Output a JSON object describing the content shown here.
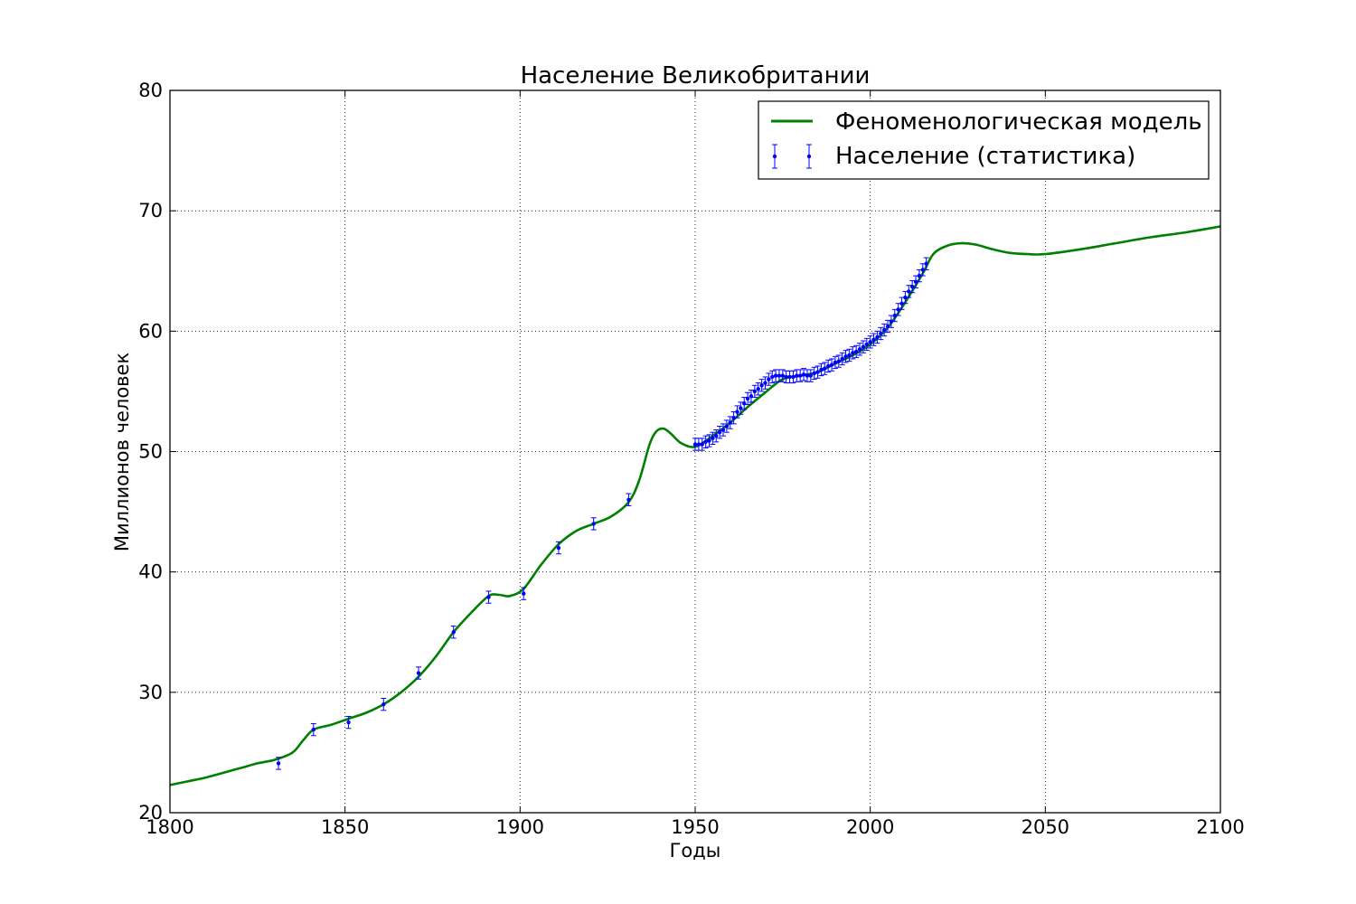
{
  "chart_data": {
    "type": "line",
    "title": "Население Великобритании",
    "xlabel": "Годы",
    "ylabel": "Миллионов человек",
    "xlim": [
      1800,
      2100
    ],
    "ylim": [
      20,
      80
    ],
    "x_ticks": [
      1800,
      1850,
      1900,
      1950,
      2000,
      2050,
      2100
    ],
    "y_ticks": [
      20,
      30,
      40,
      50,
      60,
      70,
      80
    ],
    "grid": true,
    "legend_position": "top-right",
    "series": [
      {
        "name": "Феноменологическая модель",
        "kind": "line",
        "color": "#008000",
        "points": [
          [
            1800,
            22.3
          ],
          [
            1805,
            22.6
          ],
          [
            1810,
            22.9
          ],
          [
            1815,
            23.3
          ],
          [
            1820,
            23.7
          ],
          [
            1825,
            24.1
          ],
          [
            1830,
            24.4
          ],
          [
            1835,
            25.0
          ],
          [
            1838,
            26.0
          ],
          [
            1841,
            26.9
          ],
          [
            1846,
            27.3
          ],
          [
            1851,
            27.8
          ],
          [
            1856,
            28.3
          ],
          [
            1861,
            29.0
          ],
          [
            1866,
            30.0
          ],
          [
            1871,
            31.3
          ],
          [
            1876,
            33.0
          ],
          [
            1881,
            35.0
          ],
          [
            1886,
            36.6
          ],
          [
            1891,
            38.0
          ],
          [
            1894,
            38.1
          ],
          [
            1897,
            38.0
          ],
          [
            1901,
            38.6
          ],
          [
            1906,
            40.6
          ],
          [
            1911,
            42.3
          ],
          [
            1916,
            43.4
          ],
          [
            1921,
            44.0
          ],
          [
            1926,
            44.6
          ],
          [
            1931,
            45.8
          ],
          [
            1934,
            47.6
          ],
          [
            1937,
            50.6
          ],
          [
            1939,
            51.7
          ],
          [
            1941,
            51.9
          ],
          [
            1943,
            51.5
          ],
          [
            1946,
            50.7
          ],
          [
            1950,
            50.4
          ],
          [
            1955,
            51.3
          ],
          [
            1960,
            52.4
          ],
          [
            1965,
            53.7
          ],
          [
            1970,
            54.9
          ],
          [
            1975,
            56.0
          ],
          [
            1980,
            56.3
          ],
          [
            1985,
            56.6
          ],
          [
            1990,
            57.3
          ],
          [
            1995,
            58.0
          ],
          [
            2000,
            58.9
          ],
          [
            2005,
            60.3
          ],
          [
            2010,
            62.4
          ],
          [
            2015,
            64.8
          ],
          [
            2018,
            66.4
          ],
          [
            2022,
            67.1
          ],
          [
            2026,
            67.3
          ],
          [
            2030,
            67.2
          ],
          [
            2035,
            66.8
          ],
          [
            2040,
            66.5
          ],
          [
            2045,
            66.4
          ],
          [
            2050,
            66.4
          ],
          [
            2060,
            66.8
          ],
          [
            2070,
            67.3
          ],
          [
            2080,
            67.8
          ],
          [
            2090,
            68.2
          ],
          [
            2100,
            68.7
          ]
        ]
      },
      {
        "name": "Население (статистика)",
        "kind": "errorbar",
        "color": "#0000ff",
        "error": 0.5,
        "points": [
          [
            1831,
            24.1
          ],
          [
            1841,
            26.9
          ],
          [
            1851,
            27.5
          ],
          [
            1861,
            29.0
          ],
          [
            1871,
            31.6
          ],
          [
            1881,
            35.0
          ],
          [
            1891,
            37.9
          ],
          [
            1901,
            38.2
          ],
          [
            1911,
            42.0
          ],
          [
            1921,
            44.0
          ],
          [
            1931,
            46.0
          ],
          [
            1950,
            50.6
          ],
          [
            1951,
            50.6
          ],
          [
            1952,
            50.6
          ],
          [
            1953,
            50.8
          ],
          [
            1954,
            50.9
          ],
          [
            1955,
            51.1
          ],
          [
            1956,
            51.3
          ],
          [
            1957,
            51.6
          ],
          [
            1958,
            51.8
          ],
          [
            1959,
            52.1
          ],
          [
            1960,
            52.4
          ],
          [
            1961,
            52.8
          ],
          [
            1962,
            53.3
          ],
          [
            1963,
            53.6
          ],
          [
            1964,
            54.0
          ],
          [
            1965,
            54.4
          ],
          [
            1966,
            54.6
          ],
          [
            1967,
            55.0
          ],
          [
            1968,
            55.2
          ],
          [
            1969,
            55.5
          ],
          [
            1970,
            55.7
          ],
          [
            1971,
            56.0
          ],
          [
            1972,
            56.2
          ],
          [
            1973,
            56.3
          ],
          [
            1974,
            56.3
          ],
          [
            1975,
            56.3
          ],
          [
            1976,
            56.2
          ],
          [
            1977,
            56.2
          ],
          [
            1978,
            56.2
          ],
          [
            1979,
            56.3
          ],
          [
            1980,
            56.3
          ],
          [
            1981,
            56.4
          ],
          [
            1982,
            56.3
          ],
          [
            1983,
            56.3
          ],
          [
            1984,
            56.5
          ],
          [
            1985,
            56.6
          ],
          [
            1986,
            56.8
          ],
          [
            1987,
            56.9
          ],
          [
            1988,
            57.1
          ],
          [
            1989,
            57.2
          ],
          [
            1990,
            57.4
          ],
          [
            1991,
            57.5
          ],
          [
            1992,
            57.7
          ],
          [
            1993,
            57.9
          ],
          [
            1994,
            58.0
          ],
          [
            1995,
            58.2
          ],
          [
            1996,
            58.3
          ],
          [
            1997,
            58.5
          ],
          [
            1998,
            58.7
          ],
          [
            1999,
            58.9
          ],
          [
            2000,
            59.1
          ],
          [
            2001,
            59.3
          ],
          [
            2002,
            59.5
          ],
          [
            2003,
            59.8
          ],
          [
            2004,
            60.1
          ],
          [
            2005,
            60.4
          ],
          [
            2006,
            60.8
          ],
          [
            2007,
            61.3
          ],
          [
            2008,
            61.8
          ],
          [
            2009,
            62.3
          ],
          [
            2010,
            62.8
          ],
          [
            2011,
            63.3
          ],
          [
            2012,
            63.7
          ],
          [
            2013,
            64.1
          ],
          [
            2014,
            64.6
          ],
          [
            2015,
            65.1
          ],
          [
            2016,
            65.6
          ]
        ]
      }
    ],
    "legend": [
      {
        "label": "Феноменологическая модель",
        "color": "#008000"
      },
      {
        "label": "Население (статистика)",
        "color": "#0000ff"
      }
    ]
  }
}
